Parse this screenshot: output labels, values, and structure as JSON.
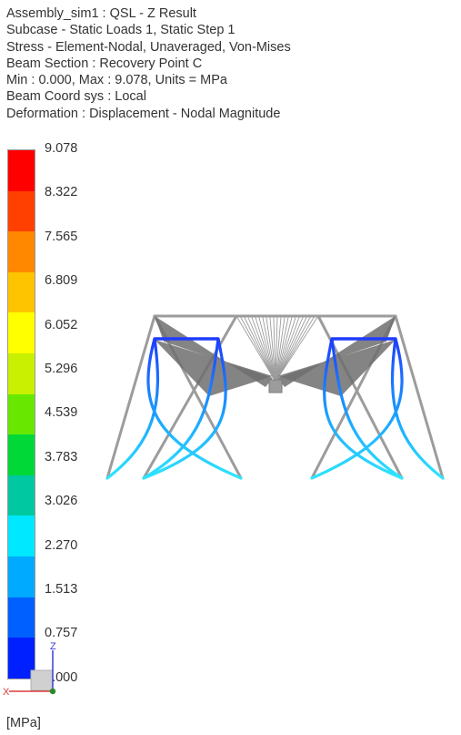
{
  "header": {
    "lines": [
      "Assembly_sim1 : QSL - Z Result",
      "Subcase - Static Loads 1, Static Step 1",
      "Stress - Element-Nodal, Unaveraged, Von-Mises",
      "Beam Section : Recovery Point C",
      "Min : 0.000, Max : 9.078, Units = MPa",
      "Beam Coord sys : Local",
      "Deformation : Displacement - Nodal Magnitude"
    ]
  },
  "legend": {
    "ticks": [
      "9.078",
      "8.322",
      "7.565",
      "6.809",
      "6.052",
      "5.296",
      "4.539",
      "3.783",
      "3.026",
      "2.270",
      "1.513",
      "0.757",
      "0.000"
    ],
    "colors": [
      "#ff0000",
      "#ff4000",
      "#ff8800",
      "#ffc400",
      "#ffff00",
      "#c8f000",
      "#68e800",
      "#00d838",
      "#00c8a0",
      "#00e8ff",
      "#00aaff",
      "#0060ff",
      "#0020ff"
    ],
    "units": "[MPa]"
  },
  "triad": {
    "z_label": "Z",
    "x_label": "X"
  },
  "model_colors": {
    "frame": "#9c9c9c",
    "low_stress": "#1e3cff",
    "mid_stress": "#1aa0ff",
    "high_stress": "#2ee6ff"
  }
}
